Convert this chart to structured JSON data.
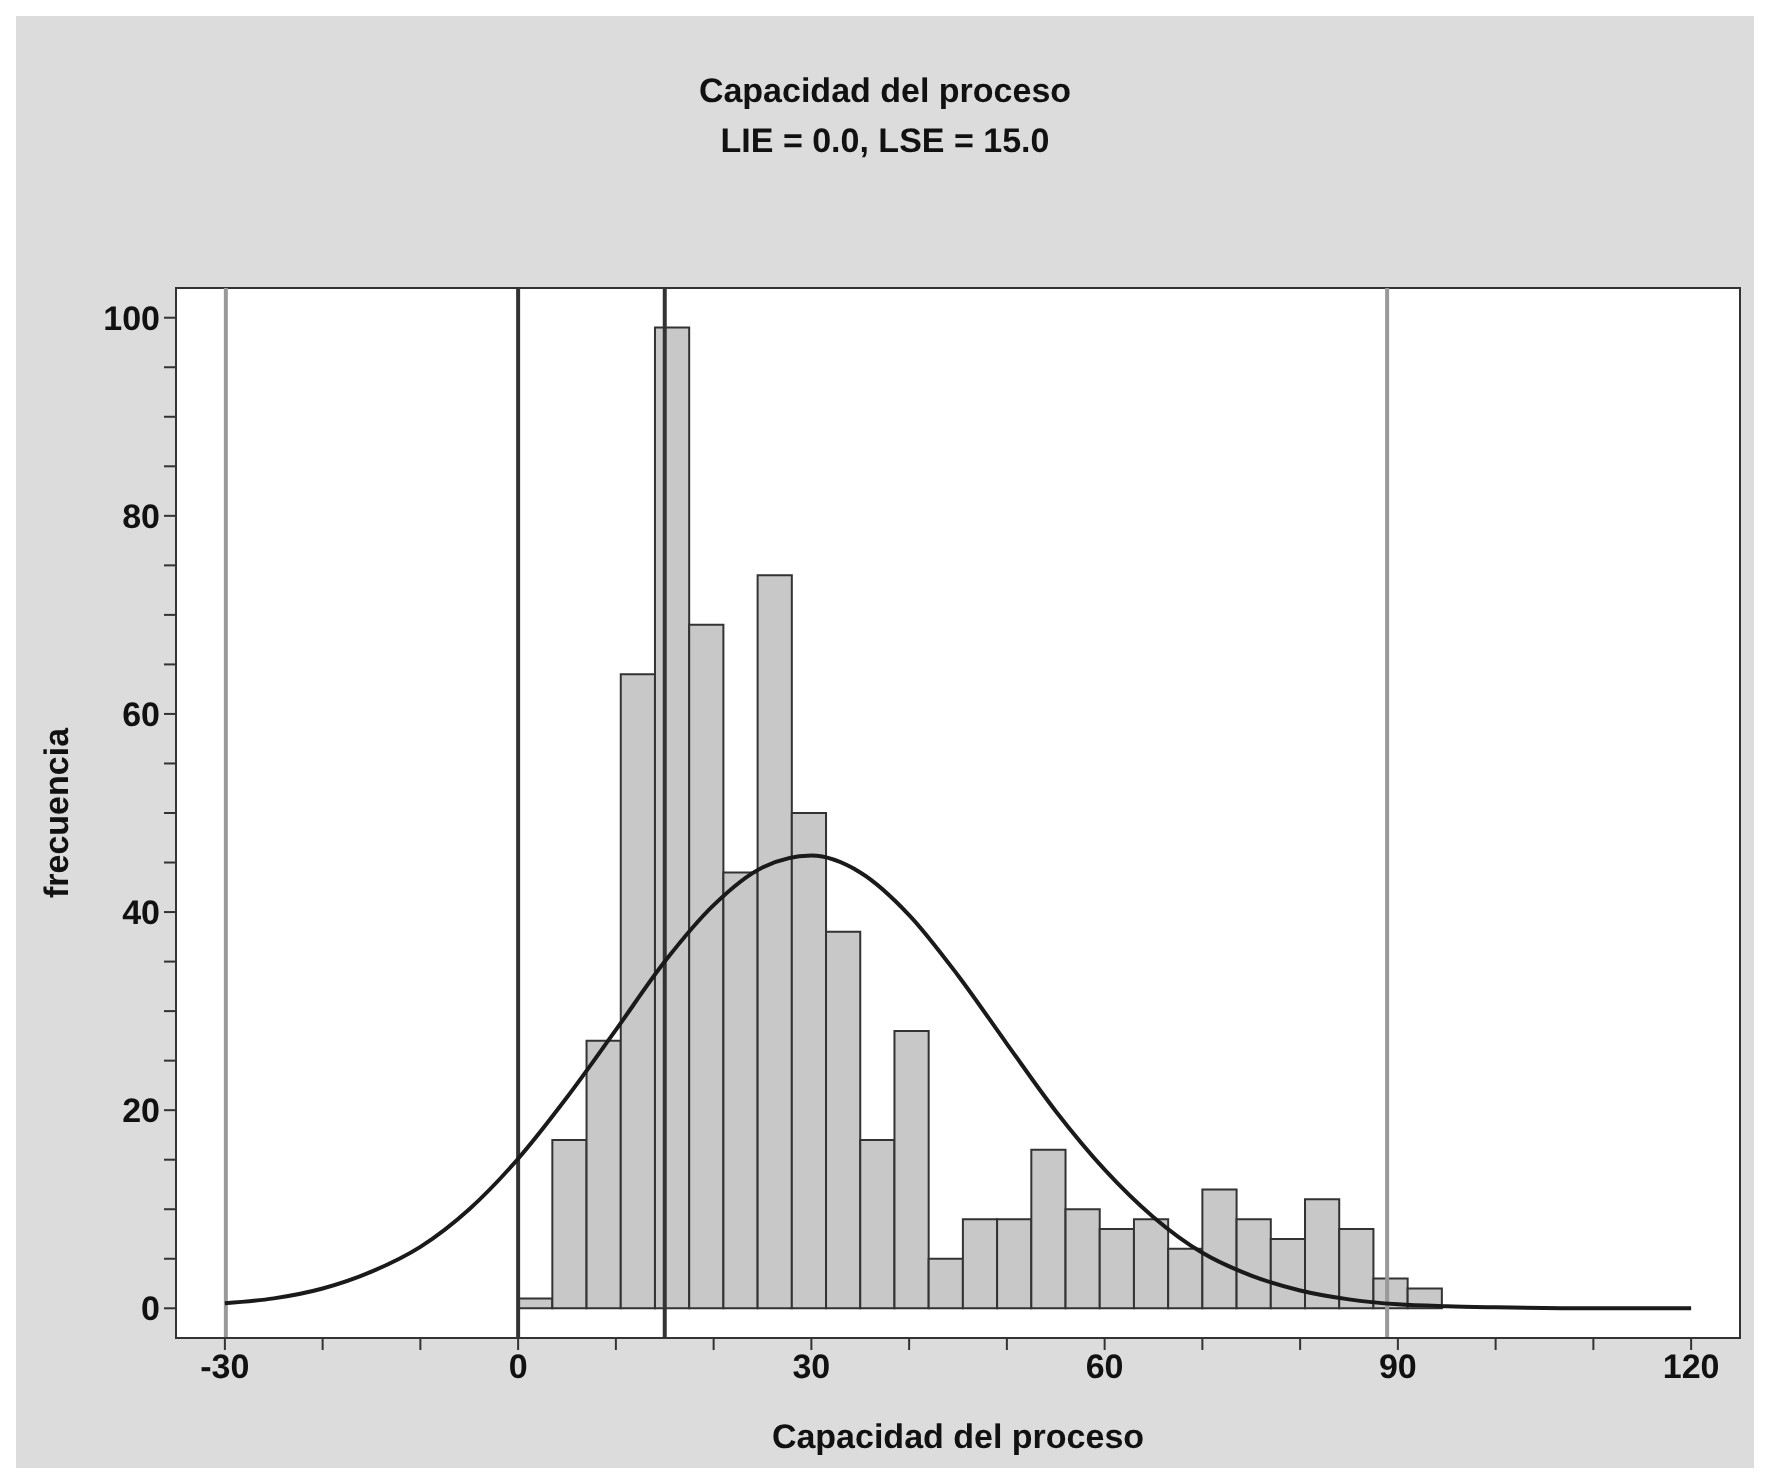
{
  "chart_data": {
    "type": "histogram",
    "title": "Capacidad del proceso",
    "subtitle": "LIE = 0.0, LSE = 15.0",
    "xlabel": "Capacidad del proceso",
    "ylabel": "frecuencia",
    "bins": [
      0,
      3.5,
      7,
      10.5,
      14,
      17.5,
      21,
      24.5,
      28,
      31.5,
      35,
      38.5,
      42,
      45.5,
      49,
      52.5,
      56,
      59.5,
      63,
      66.5,
      70,
      73.5,
      77,
      80.5,
      84,
      87.5,
      91,
      94.5
    ],
    "values": [
      1,
      17,
      27,
      64,
      99,
      69,
      44,
      74,
      50,
      38,
      17,
      28,
      5,
      9,
      9,
      16,
      10,
      8,
      9,
      6,
      12,
      9,
      7,
      11,
      8,
      3,
      2
    ],
    "color": "#c8c8c8",
    "series": [
      {
        "type": "line",
        "color": "#1a1a1a",
        "x": [
          -30,
          -25,
          -20,
          -15,
          -10,
          -5,
          0,
          5,
          10,
          15,
          20,
          25,
          30,
          35,
          40,
          45,
          50,
          55,
          60,
          65,
          70,
          75,
          80,
          85,
          90,
          95,
          100,
          110,
          120
        ],
        "values": [
          0.5,
          1.0,
          2.0,
          3.7,
          6.2,
          10.0,
          15.1,
          21.3,
          28.1,
          35.0,
          40.7,
          44.5,
          45.7,
          44.0,
          39.7,
          33.6,
          26.7,
          19.9,
          14.0,
          9.2,
          5.6,
          3.3,
          1.8,
          0.9,
          0.4,
          0.2,
          0.1,
          0,
          0
        ]
      }
    ],
    "ref_lines": [
      {
        "axis": "x",
        "value": 0,
        "color": "#333333"
      },
      {
        "axis": "x",
        "value": 15,
        "color": "#333333"
      },
      {
        "axis": "x",
        "value": -29.9,
        "color": "#999999"
      },
      {
        "axis": "x",
        "value": 88.9,
        "color": "#999999"
      }
    ],
    "xlim": [
      -35,
      125
    ],
    "ylim": [
      -3,
      103
    ],
    "xticks": [
      -30,
      {
        "value": -20,
        "label": null
      },
      {
        "value": -10,
        "label": null
      },
      0,
      {
        "value": 10,
        "label": null
      },
      {
        "value": 20,
        "label": null
      },
      30,
      {
        "value": 40,
        "label": null
      },
      {
        "value": 50,
        "label": null
      },
      60,
      {
        "value": 70,
        "label": null
      },
      {
        "value": 80,
        "label": null
      },
      90,
      {
        "value": 100,
        "label": null
      },
      {
        "value": 110,
        "label": null
      },
      120
    ],
    "yticks": [
      0,
      {
        "value": 5,
        "label": null
      },
      {
        "value": 10,
        "label": null
      },
      {
        "value": 15,
        "label": null
      },
      20,
      {
        "value": 25,
        "label": null
      },
      {
        "value": 30,
        "label": null
      },
      {
        "value": 35,
        "label": null
      },
      40,
      {
        "value": 45,
        "label": null
      },
      {
        "value": 50,
        "label": null
      },
      {
        "value": 55,
        "label": null
      },
      60,
      {
        "value": 65,
        "label": null
      },
      {
        "value": 70,
        "label": null
      },
      {
        "value": 75,
        "label": null
      },
      80,
      {
        "value": 85,
        "label": null
      },
      {
        "value": 90,
        "label": null
      },
      {
        "value": 95,
        "label": null
      },
      100
    ]
  }
}
